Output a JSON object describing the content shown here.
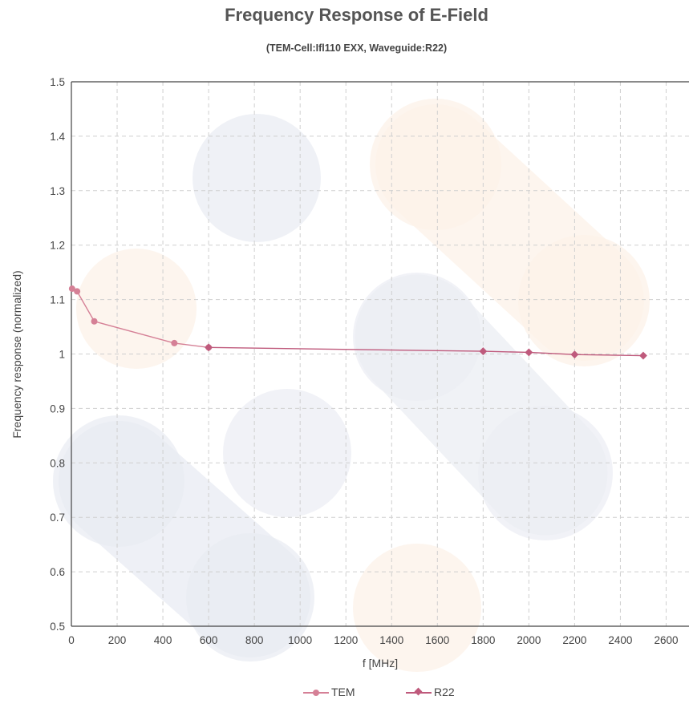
{
  "chart_data": {
    "type": "line",
    "title": "Frequency Response of E-Field",
    "subtitle": "(TEM-Cell:Ifl110 EXX, Waveguide:R22)",
    "xlabel": "f [MHz]",
    "ylabel": "Frequency response (normalized)",
    "xlim": [
      0,
      2700
    ],
    "ylim": [
      0.5,
      1.5
    ],
    "xticks": [
      0,
      200,
      400,
      600,
      800,
      1000,
      1200,
      1400,
      1600,
      1800,
      2000,
      2200,
      2400,
      2600
    ],
    "yticks": [
      0.5,
      0.6,
      0.7,
      0.8,
      0.9,
      1,
      1.1,
      1.2,
      1.3,
      1.4,
      1.5
    ],
    "grid": true,
    "legend_position": "bottom-center",
    "series": [
      {
        "name": "TEM",
        "color": "#d58096",
        "marker": "circle",
        "x": [
          3,
          25,
          100,
          450,
          600
        ],
        "y": [
          1.12,
          1.115,
          1.06,
          1.02,
          1.012
        ]
      },
      {
        "name": "R22",
        "color": "#bf5a7c",
        "marker": "diamond",
        "x": [
          600,
          1800,
          2000,
          2200,
          2500
        ],
        "y": [
          1.012,
          1.005,
          1.003,
          0.999,
          0.997
        ]
      }
    ]
  }
}
